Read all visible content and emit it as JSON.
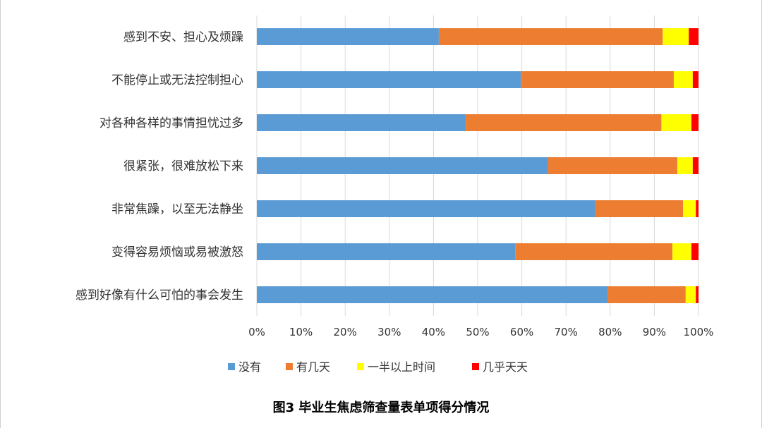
{
  "chart_data": {
    "type": "bar",
    "orientation": "horizontal",
    "stacked": true,
    "categories": [
      "感到不安、担心及烦躁",
      "不能停止或无法控制担心",
      "对各种各样的事情担忧过多",
      "很紧张，很难放松下来",
      "非常焦躁，以至无法静坐",
      "变得容易烦恼或易被激怒",
      "感到好像有什么可怕的事会发生"
    ],
    "series": [
      {
        "name": "没有",
        "color": "#5b9bd5",
        "values": [
          41.2,
          59.8,
          47.3,
          65.9,
          76.6,
          58.5,
          79.4
        ]
      },
      {
        "name": "有几天",
        "color": "#ed7d31",
        "values": [
          50.7,
          34.6,
          44.3,
          29.3,
          19.9,
          35.6,
          17.7
        ]
      },
      {
        "name": "一半以上时间",
        "color": "#ffff00",
        "values": [
          5.9,
          4.3,
          6.8,
          3.5,
          2.9,
          4.3,
          2.3
        ]
      },
      {
        "name": "几乎天天",
        "color": "#ff0000",
        "values": [
          2.2,
          1.3,
          1.6,
          1.3,
          0.6,
          1.6,
          0.6
        ]
      }
    ],
    "xlim": [
      0,
      100
    ],
    "x_ticks": [
      "0%",
      "10%",
      "20%",
      "30%",
      "40%",
      "50%",
      "60%",
      "70%",
      "80%",
      "90%",
      "100%"
    ],
    "xlabel": "",
    "ylabel": "",
    "grid": true,
    "legend_position": "bottom",
    "caption": "图3  毕业生焦虑筛查量表单项得分情况"
  }
}
